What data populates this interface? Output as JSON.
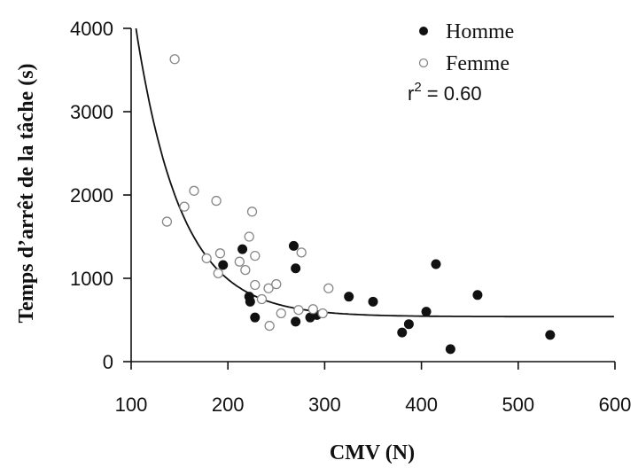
{
  "chart_data": {
    "type": "scatter",
    "xlabel": "CMV (N)",
    "ylabel": "Temps d’arrêt de la tâche (s)",
    "xlim": [
      100,
      600
    ],
    "ylim": [
      0,
      4000
    ],
    "xticks": [
      100,
      200,
      300,
      400,
      500,
      600
    ],
    "yticks": [
      0,
      1000,
      2000,
      3000,
      4000
    ],
    "grid": false,
    "legend": "top-right",
    "annotation_prefix": "r",
    "annotation_sup": "2",
    "annotation_value": " = 0.60",
    "series": [
      {
        "name": "Homme",
        "marker": "filled-circle",
        "color": "#111111",
        "points": [
          [
            195,
            1160
          ],
          [
            215,
            1350
          ],
          [
            222,
            780
          ],
          [
            223,
            720
          ],
          [
            228,
            530
          ],
          [
            268,
            1390
          ],
          [
            270,
            1120
          ],
          [
            270,
            480
          ],
          [
            285,
            530
          ],
          [
            292,
            560
          ],
          [
            325,
            780
          ],
          [
            350,
            720
          ],
          [
            380,
            350
          ],
          [
            387,
            450
          ],
          [
            405,
            600
          ],
          [
            415,
            1170
          ],
          [
            430,
            150
          ],
          [
            458,
            800
          ],
          [
            533,
            320
          ]
        ]
      },
      {
        "name": "Femme",
        "marker": "open-circle",
        "color": "#888888",
        "points": [
          [
            137,
            1680
          ],
          [
            145,
            3630
          ],
          [
            155,
            1860
          ],
          [
            165,
            2050
          ],
          [
            178,
            1240
          ],
          [
            188,
            1930
          ],
          [
            190,
            1060
          ],
          [
            192,
            1300
          ],
          [
            212,
            1200
          ],
          [
            218,
            1100
          ],
          [
            222,
            1500
          ],
          [
            225,
            1800
          ],
          [
            228,
            1270
          ],
          [
            228,
            920
          ],
          [
            235,
            750
          ],
          [
            242,
            880
          ],
          [
            243,
            430
          ],
          [
            250,
            930
          ],
          [
            255,
            580
          ],
          [
            273,
            620
          ],
          [
            276,
            1310
          ],
          [
            288,
            630
          ],
          [
            298,
            580
          ],
          [
            304,
            880
          ]
        ]
      }
    ],
    "fit_curve": {
      "type": "exponential-decay",
      "asymptote": 540,
      "amplitude": 3460,
      "x0": 105,
      "rate": 0.0215,
      "x_range": [
        105,
        600
      ]
    }
  }
}
